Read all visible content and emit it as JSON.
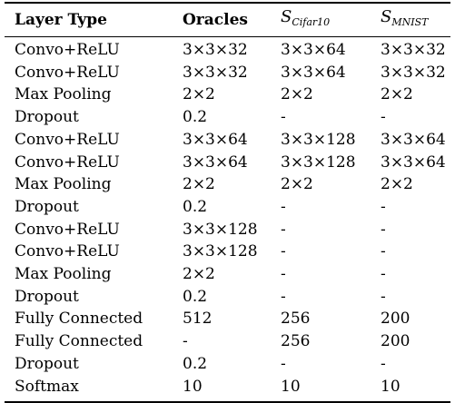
{
  "table": {
    "headers": {
      "layer_type": "Layer Type",
      "oracles": "Oracles",
      "s_cifar_main": "S",
      "s_cifar_sub": "Cifar10",
      "s_mnist_main": "S",
      "s_mnist_sub": "MNIST"
    },
    "rows": [
      [
        "Convo+ReLU",
        "3×3×32",
        "3×3×64",
        "3×3×32"
      ],
      [
        "Convo+ReLU",
        "3×3×32",
        "3×3×64",
        "3×3×32"
      ],
      [
        "Max Pooling",
        "2×2",
        "2×2",
        "2×2"
      ],
      [
        "Dropout",
        "0.2",
        "-",
        "-"
      ],
      [
        "Convo+ReLU",
        "3×3×64",
        "3×3×128",
        "3×3×64"
      ],
      [
        "Convo+ReLU",
        "3×3×64",
        "3×3×128",
        "3×3×64"
      ],
      [
        "Max Pooling",
        "2×2",
        "2×2",
        "2×2"
      ],
      [
        "Dropout",
        "0.2",
        "-",
        "-"
      ],
      [
        "Convo+ReLU",
        "3×3×128",
        "-",
        "-"
      ],
      [
        "Convo+ReLU",
        "3×3×128",
        "-",
        "-"
      ],
      [
        "Max Pooling",
        "2×2",
        "-",
        "-"
      ],
      [
        "Dropout",
        "0.2",
        "-",
        "-"
      ],
      [
        "Fully Connected",
        "512",
        "256",
        "200"
      ],
      [
        "Fully Connected",
        "-",
        "256",
        "200"
      ],
      [
        "Dropout",
        "0.2",
        "-",
        "-"
      ],
      [
        "Softmax",
        "10",
        "10",
        "10"
      ]
    ]
  }
}
